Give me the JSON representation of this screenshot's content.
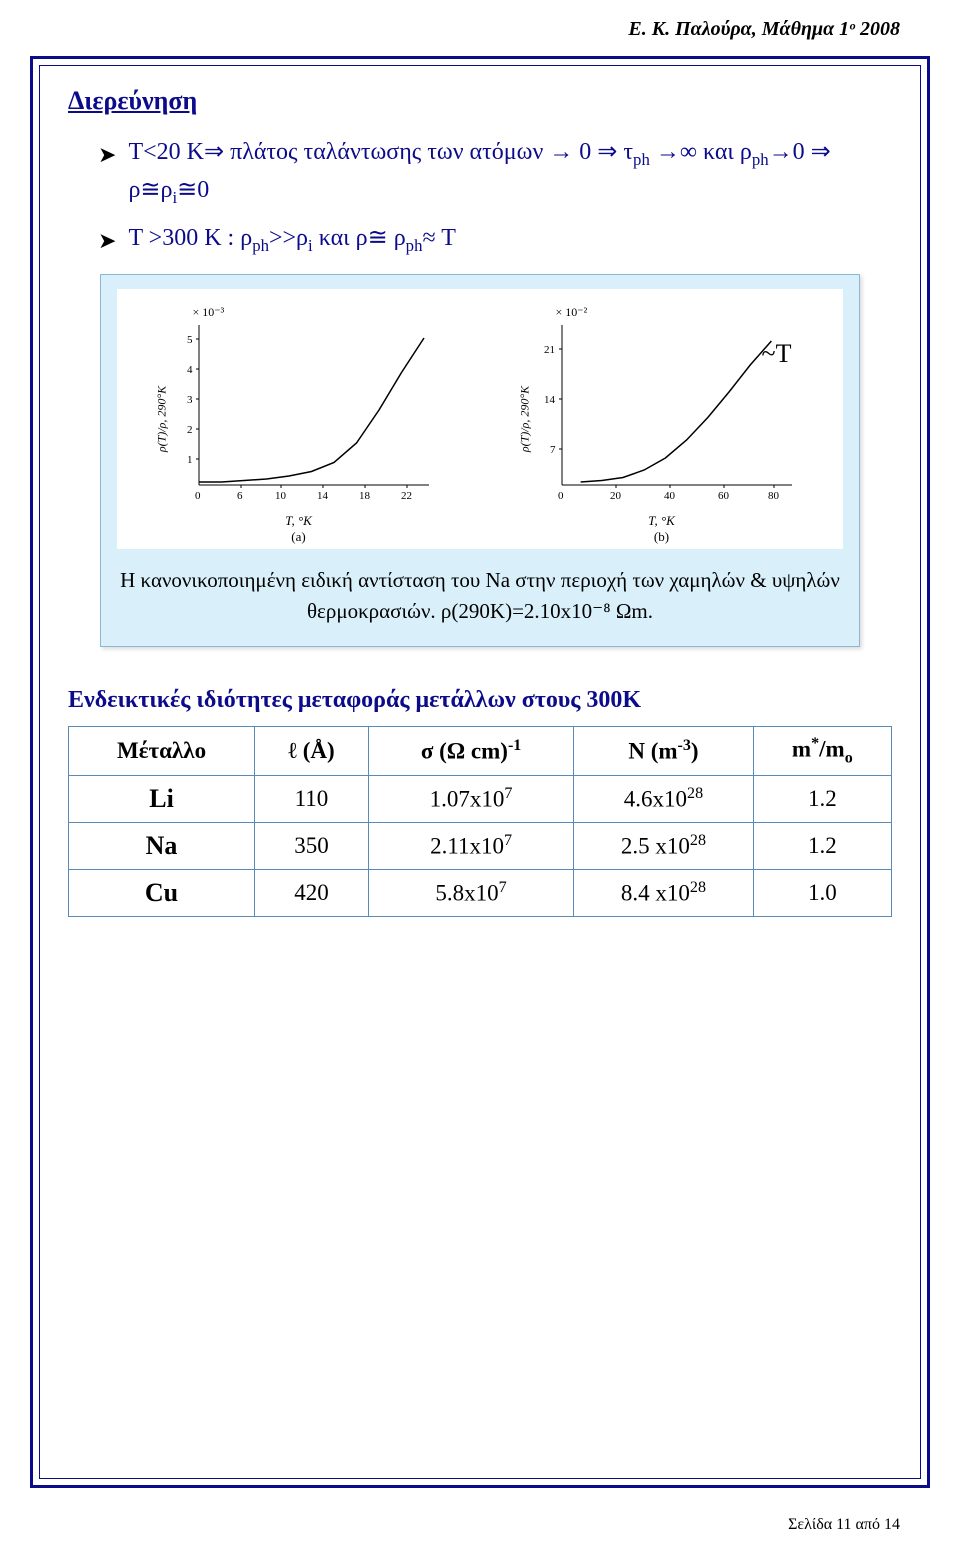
{
  "header": "Ε. Κ. Παλούρα, Μάθημα 1ᵒ 2008",
  "section_title": "Διερεύνηση",
  "bullet1_html": "T<20 K⇒ πλάτος ταλάντωσης των ατόμων → 0 ⇒ τ<sub>ph</sub> →∞ και ρ<sub>ph</sub>→0 ⇒ ρ≅ρ<sub>i</sub>≅0",
  "bullet2_html": "T >300 K : ρ<sub>ph</sub>>>ρ<sub>i</sub>  και ρ≅ ρ<sub>ph</sub>≈ T",
  "figure": {
    "tildeT": "~T",
    "caption": "Η κανονικοποιημένη ειδική αντίσταση του Na στην περιοχή των χαμηλών & υψηλών θερμοκρασιών. ρ(290Κ)=2.10x10⁻⁸ Ωm.",
    "chartA": {
      "scale": "× 10⁻³",
      "ylabel": "ρ(T)/ρ, 290°K",
      "yticks": [
        "5",
        "4",
        "3",
        "2",
        "1"
      ],
      "xlabel": "T, °K",
      "xticks": [
        "0",
        "6",
        "10",
        "14",
        "18",
        "22"
      ],
      "sublabel": "(a)",
      "curve_color": "#000000",
      "axis_color": "#000000",
      "points": [
        [
          0,
          0.98
        ],
        [
          0.1,
          0.98
        ],
        [
          0.2,
          0.97
        ],
        [
          0.3,
          0.96
        ],
        [
          0.4,
          0.94
        ],
        [
          0.5,
          0.91
        ],
        [
          0.6,
          0.85
        ],
        [
          0.7,
          0.72
        ],
        [
          0.8,
          0.5
        ],
        [
          0.9,
          0.25
        ],
        [
          1.0,
          0.02
        ]
      ]
    },
    "chartB": {
      "scale": "× 10⁻²",
      "ylabel": "ρ(T)/ρ, 290°K",
      "yticks": [
        "21",
        "14",
        "7"
      ],
      "xlabel": "T, °K",
      "xticks": [
        "0",
        "20",
        "40",
        "60",
        "80"
      ],
      "sublabel": "(b)",
      "curve_color": "#000000",
      "axis_color": "#000000",
      "points": [
        [
          0.05,
          0.98
        ],
        [
          0.15,
          0.97
        ],
        [
          0.25,
          0.95
        ],
        [
          0.35,
          0.9
        ],
        [
          0.45,
          0.82
        ],
        [
          0.55,
          0.7
        ],
        [
          0.65,
          0.55
        ],
        [
          0.75,
          0.38
        ],
        [
          0.85,
          0.2
        ],
        [
          0.95,
          0.04
        ]
      ]
    }
  },
  "indicative_title": "Ενδεικτικές ιδιότητες μεταφοράς μετάλλων στους 300Κ",
  "table": {
    "headers_html": [
      "Μέταλλο",
      "ℓ (Å)",
      "σ (Ω cm)<sup>-1</sup>",
      "N (m<sup>-3</sup>)",
      "m<sup>*</sup>/m<sub>o</sub>"
    ],
    "rows_html": [
      [
        "Li",
        "110",
        "1.07x10<sup>7</sup>",
        "4.6x10<sup>28</sup>",
        "1.2"
      ],
      [
        "Na",
        "350",
        "2.11x10<sup>7</sup>",
        "2.5 x10<sup>28</sup>",
        "1.2"
      ],
      [
        "Cu",
        "420",
        "5.8x10<sup>7</sup>",
        "8.4 x10<sup>28</sup>",
        "1.0"
      ]
    ],
    "border_color": "#5a8ab8"
  },
  "footer": "Σελίδα 11 από 14"
}
